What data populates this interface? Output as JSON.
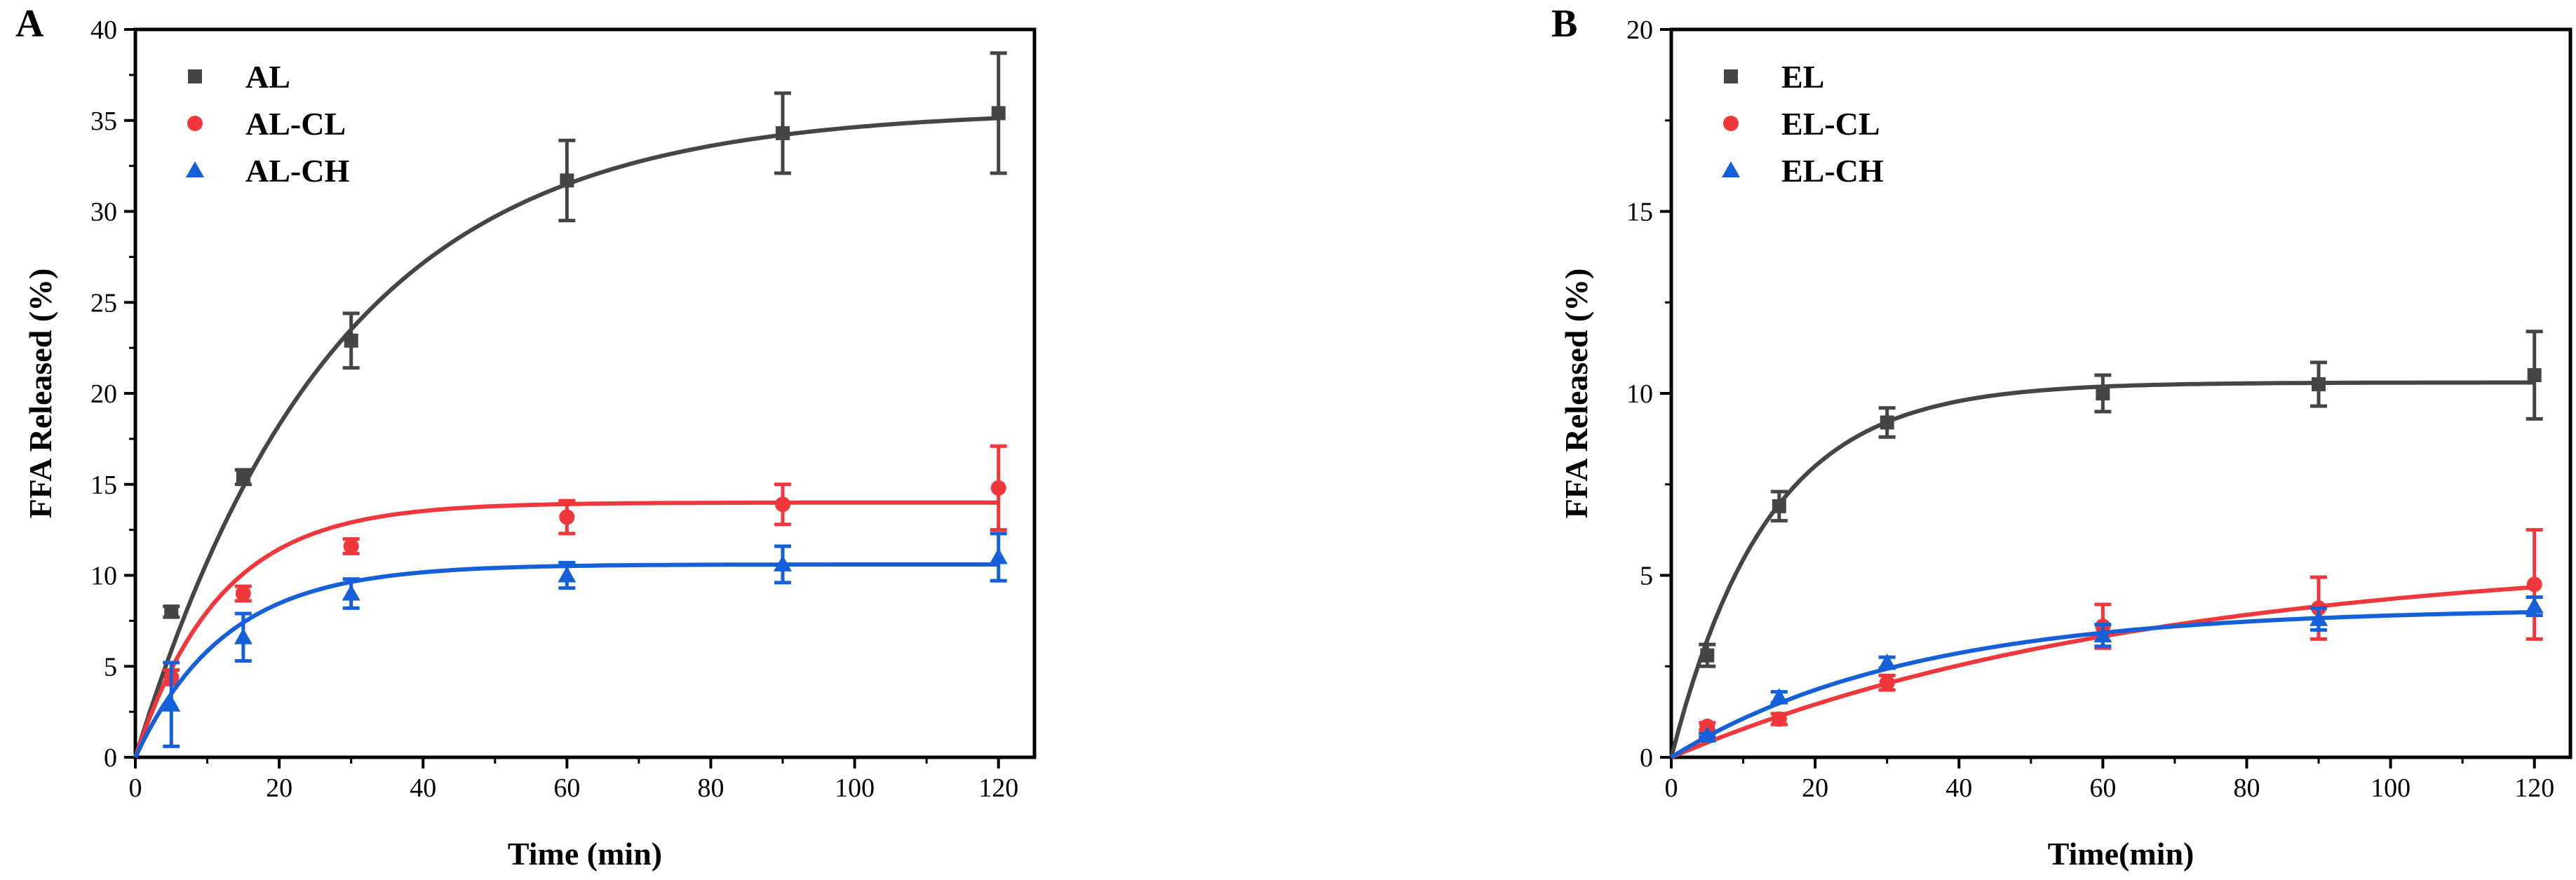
{
  "chart_data": [
    {
      "panel": "A",
      "type": "scatter",
      "xlabel": "Time (min)",
      "ylabel": "FFA Released (%)",
      "xlim": [
        0,
        125
      ],
      "ylim": [
        0,
        40
      ],
      "xticks": [
        0,
        20,
        40,
        60,
        80,
        100,
        120
      ],
      "yticks": [
        0,
        5,
        10,
        15,
        20,
        25,
        30,
        35,
        40
      ],
      "legend_position": "top-left",
      "series": [
        {
          "name": "AL",
          "marker": "square",
          "color": "#454545",
          "x": [
            5,
            15,
            30,
            60,
            90,
            120
          ],
          "y": [
            8.0,
            15.4,
            22.9,
            31.7,
            34.3,
            35.4
          ],
          "err": [
            0.3,
            0.4,
            1.5,
            2.2,
            2.2,
            3.3
          ],
          "fit": {
            "ymax": 35.6,
            "k": 0.036
          }
        },
        {
          "name": "AL-CL",
          "marker": "circle",
          "color": "#f0373c",
          "x": [
            5,
            15,
            30,
            60,
            90,
            120
          ],
          "y": [
            4.4,
            9.0,
            11.6,
            13.2,
            13.9,
            14.8
          ],
          "err": [
            0.4,
            0.4,
            0.4,
            0.9,
            1.1,
            2.3
          ],
          "fit": {
            "ymax": 14.0,
            "k": 0.085
          }
        },
        {
          "name": "AL-CH",
          "marker": "triangle",
          "color": "#1560d8",
          "x": [
            5,
            15,
            30,
            60,
            90,
            120
          ],
          "y": [
            2.9,
            6.6,
            9.0,
            10.0,
            10.6,
            11.0
          ],
          "err": [
            2.3,
            1.3,
            0.8,
            0.7,
            1.0,
            1.3
          ],
          "fit": {
            "ymax": 10.6,
            "k": 0.08
          }
        }
      ]
    },
    {
      "panel": "B",
      "type": "scatter",
      "xlabel": "Time(min)",
      "ylabel": "FFA Released (%)",
      "xlim": [
        0,
        125
      ],
      "ylim": [
        0,
        20
      ],
      "xticks": [
        0,
        20,
        40,
        60,
        80,
        100,
        120
      ],
      "yticks": [
        0,
        5,
        10,
        15,
        20
      ],
      "legend_position": "top-left",
      "series": [
        {
          "name": "EL",
          "marker": "square",
          "color": "#454545",
          "x": [
            5,
            15,
            30,
            60,
            90,
            120
          ],
          "y": [
            2.8,
            6.9,
            9.2,
            10.0,
            10.25,
            10.5
          ],
          "err": [
            0.3,
            0.4,
            0.4,
            0.5,
            0.6,
            1.2
          ],
          "fit": {
            "ymax": 10.3,
            "k": 0.075
          }
        },
        {
          "name": "EL-CL",
          "marker": "circle",
          "color": "#f0373c",
          "x": [
            5,
            15,
            30,
            60,
            90,
            120
          ],
          "y": [
            0.85,
            1.05,
            2.05,
            3.6,
            4.1,
            4.75
          ],
          "err": [
            0.1,
            0.15,
            0.2,
            0.6,
            0.85,
            1.5
          ],
          "fit": {
            "ymax": 5.6,
            "k": 0.015
          }
        },
        {
          "name": "EL-CH",
          "marker": "triangle",
          "color": "#1560d8",
          "x": [
            5,
            15,
            30,
            60,
            90,
            120
          ],
          "y": [
            0.6,
            1.65,
            2.6,
            3.35,
            3.8,
            4.15
          ],
          "err": [
            0.05,
            0.15,
            0.15,
            0.3,
            0.3,
            0.25
          ],
          "fit": {
            "ymax": 4.1,
            "k": 0.03
          }
        }
      ]
    }
  ]
}
